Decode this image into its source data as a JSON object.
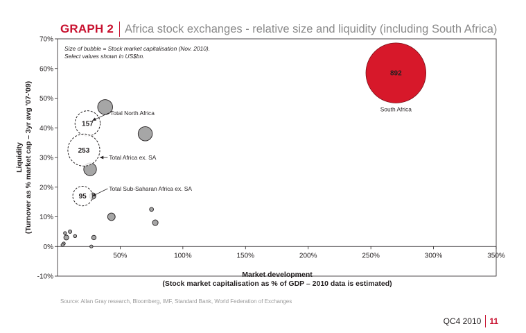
{
  "header": {
    "graph_number": "GRAPH 2",
    "title": "Africa stock exchanges - relative size and liquidity (including South Africa)"
  },
  "chart_data": {
    "type": "scatter",
    "xlabel_line1": "Market development",
    "xlabel_line2": "(Stock market capitalisation as % of GDP – 2010 data is estimated)",
    "ylabel_line1": "Liquidity",
    "ylabel_line2": "(Turnover as % market cap – 3yr avg '07-'09)",
    "xlim": [
      0,
      350
    ],
    "ylim": [
      -10,
      70
    ],
    "x_ticks": [
      {
        "value": 50,
        "label": "50%"
      },
      {
        "value": 100,
        "label": "100%"
      },
      {
        "value": 150,
        "label": "150%"
      },
      {
        "value": 200,
        "label": "200%"
      },
      {
        "value": 250,
        "label": "250%"
      },
      {
        "value": 300,
        "label": "300%"
      },
      {
        "value": 350,
        "label": "350%"
      }
    ],
    "y_ticks": [
      {
        "value": -10,
        "label": "-10%"
      },
      {
        "value": 0,
        "label": "0%"
      },
      {
        "value": 10,
        "label": "10%"
      },
      {
        "value": 20,
        "label": "20%"
      },
      {
        "value": 30,
        "label": "30%"
      },
      {
        "value": 40,
        "label": "40%"
      },
      {
        "value": 50,
        "label": "50%"
      },
      {
        "value": 60,
        "label": "60%"
      },
      {
        "value": 70,
        "label": "70%"
      }
    ],
    "note_line1": "Size of bubble = Stock market capitalisation (Nov. 2010).",
    "note_line2": "Select values shown in US$bn.",
    "bubbles": [
      {
        "x": 270,
        "y": 58.5,
        "size": 892,
        "label": "892",
        "caption": "South Africa",
        "style": "highlight"
      },
      {
        "x": 38,
        "y": 47,
        "size": 55,
        "style": "grey"
      },
      {
        "x": 70,
        "y": 38,
        "size": 50,
        "style": "grey"
      },
      {
        "x": 26,
        "y": 26,
        "size": 40,
        "style": "grey"
      },
      {
        "x": 43,
        "y": 10,
        "size": 14,
        "style": "grey"
      },
      {
        "x": 78,
        "y": 8,
        "size": 8,
        "style": "grey"
      },
      {
        "x": 75,
        "y": 12.5,
        "size": 4,
        "style": "grey"
      },
      {
        "x": 28,
        "y": 17,
        "size": 10,
        "style": "grey"
      },
      {
        "x": 29,
        "y": 3,
        "size": 5,
        "style": "grey"
      },
      {
        "x": 7,
        "y": 3,
        "size": 6,
        "style": "grey"
      },
      {
        "x": 10,
        "y": 5,
        "size": 3,
        "style": "grey"
      },
      {
        "x": 6,
        "y": 4.5,
        "size": 2,
        "style": "grey"
      },
      {
        "x": 14,
        "y": 3.5,
        "size": 2.5,
        "style": "grey"
      },
      {
        "x": 5,
        "y": 1,
        "size": 2,
        "style": "grey"
      },
      {
        "x": 4,
        "y": 0.5,
        "size": 1,
        "style": "grey"
      },
      {
        "x": 27,
        "y": 0,
        "size": 1,
        "style": "grey"
      },
      {
        "x": 24,
        "y": 41.5,
        "size": 157,
        "label": "157",
        "style": "dashed"
      },
      {
        "x": 21,
        "y": 32.5,
        "size": 253,
        "label": "253",
        "style": "dashed"
      },
      {
        "x": 20,
        "y": 17,
        "size": 95,
        "label": "95",
        "style": "dashed"
      }
    ],
    "annotations": [
      {
        "text": "Total North Africa",
        "from": [
          28,
          42.5
        ],
        "to": [
          41,
          45
        ]
      },
      {
        "text": "Total Africa ex. SA",
        "from": [
          34,
          30
        ],
        "to": [
          40,
          30
        ]
      },
      {
        "text": "Total Sub-Saharan Africa ex. SA",
        "from": [
          28,
          17
        ],
        "to": [
          40,
          19.5
        ]
      }
    ],
    "colors": {
      "highlight": "#d7182a",
      "grey": "#a6a6a6",
      "accent": "#c8102e"
    }
  },
  "source": "Source: Allan Gray research, Bloomberg, IMF, Standard Bank, World Federation of Exchanges",
  "footer": {
    "quarter": "QC4 2010",
    "page": "11"
  }
}
